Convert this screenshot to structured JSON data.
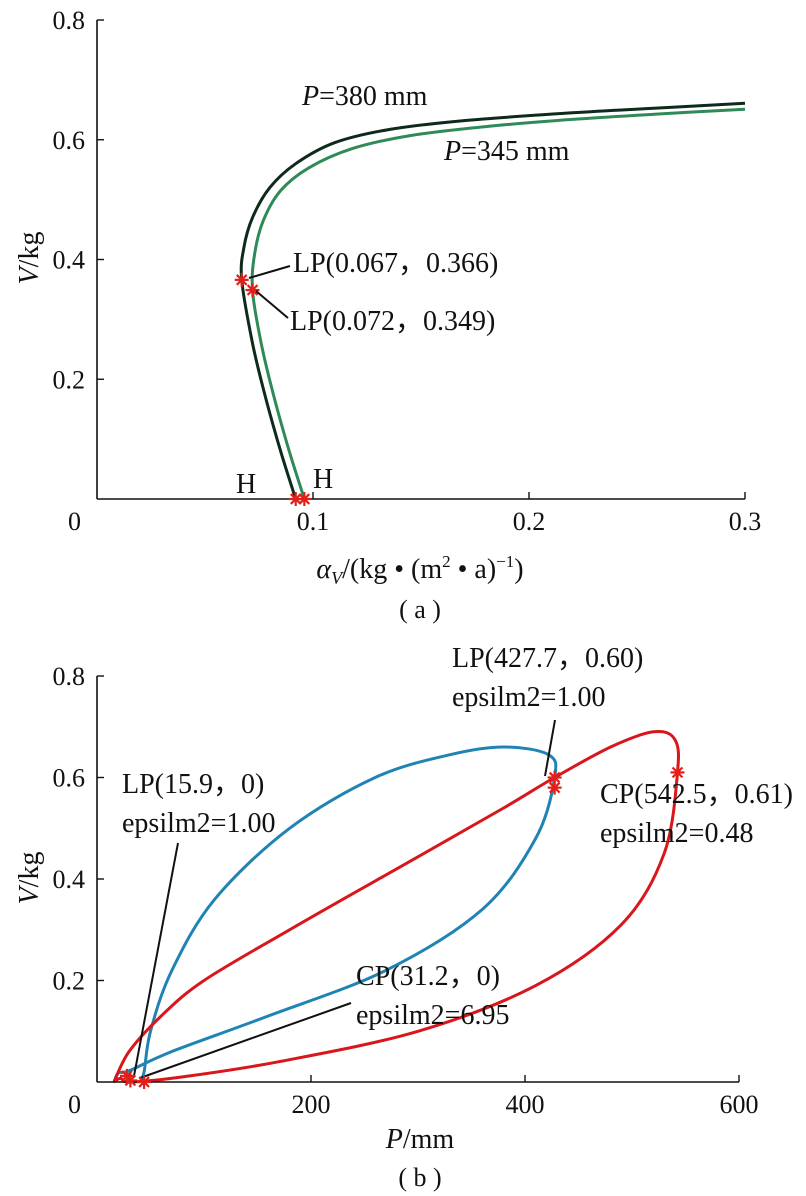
{
  "chart_data": [
    {
      "type": "line",
      "panel_label": "( a )",
      "xlabel": {
        "var": "α",
        "sub": "V",
        "unit": "/(kg • (m",
        "sup2": "2",
        "unit2": " • a)",
        "sup": "−1",
        "close": ")"
      },
      "ylabel": {
        "var": "V",
        "unit": "/kg"
      },
      "origin_label": "0",
      "xlim": [
        0,
        0.3
      ],
      "ylim": [
        0,
        0.8
      ],
      "xticks": [
        0.1,
        0.2,
        0.3
      ],
      "xtick_labels": [
        "0.1",
        "0.2",
        "0.3"
      ],
      "yticks": [
        0.2,
        0.4,
        0.6,
        0.8
      ],
      "ytick_labels": [
        "0.2",
        "0.4",
        "0.6",
        "0.8"
      ],
      "series": [
        {
          "name": "P=380 mm",
          "label_var": "P",
          "label_rest": "=380 mm",
          "color": "#0e2a1a",
          "points": [
            [
              0.092,
              0.0
            ],
            [
              0.085,
              0.08
            ],
            [
              0.078,
              0.17
            ],
            [
              0.072,
              0.26
            ],
            [
              0.067,
              0.366
            ],
            [
              0.068,
              0.42
            ],
            [
              0.072,
              0.47
            ],
            [
              0.08,
              0.52
            ],
            [
              0.092,
              0.56
            ],
            [
              0.11,
              0.595
            ],
            [
              0.135,
              0.617
            ],
            [
              0.17,
              0.632
            ],
            [
              0.22,
              0.645
            ],
            [
              0.26,
              0.653
            ],
            [
              0.3,
              0.661
            ]
          ]
        },
        {
          "name": "P=345 mm",
          "label_var": "P",
          "label_rest": "=345 mm",
          "color": "#2e8b57",
          "points": [
            [
              0.096,
              0.0
            ],
            [
              0.089,
              0.08
            ],
            [
              0.082,
              0.17
            ],
            [
              0.076,
              0.26
            ],
            [
              0.072,
              0.349
            ],
            [
              0.073,
              0.41
            ],
            [
              0.077,
              0.465
            ],
            [
              0.085,
              0.515
            ],
            [
              0.098,
              0.553
            ],
            [
              0.118,
              0.585
            ],
            [
              0.145,
              0.607
            ],
            [
              0.18,
              0.622
            ],
            [
              0.22,
              0.634
            ],
            [
              0.26,
              0.643
            ],
            [
              0.3,
              0.651
            ]
          ]
        }
      ],
      "markers": [
        {
          "x": 0.067,
          "y": 0.366,
          "label": "LP(0.067，0.366)"
        },
        {
          "x": 0.072,
          "y": 0.349,
          "label": "LP(0.072，0.349)"
        },
        {
          "x": 0.092,
          "y": 0.0,
          "label": "H"
        },
        {
          "x": 0.096,
          "y": 0.0,
          "label": "H"
        }
      ],
      "marker_color": "#e0201a"
    },
    {
      "type": "line",
      "panel_label": "( b )",
      "xlabel": {
        "var": "P",
        "unit": "/mm"
      },
      "ylabel": {
        "var": "V",
        "unit": "/kg"
      },
      "origin_label": "0",
      "xlim": [
        0,
        600
      ],
      "ylim": [
        0,
        0.8
      ],
      "xticks": [
        200,
        400,
        600
      ],
      "xtick_labels": [
        "200",
        "400",
        "600"
      ],
      "yticks": [
        0.2,
        0.4,
        0.6,
        0.8
      ],
      "ytick_labels": [
        "0.2",
        "0.4",
        "0.6",
        "0.8"
      ],
      "series": [
        {
          "color": "#1f84b4",
          "points": [
            [
              15.9,
              0.0
            ],
            [
              20,
              0.018
            ],
            [
              30,
              0.022
            ],
            [
              70,
              0.06
            ],
            [
              160,
              0.13
            ],
            [
              270,
              0.22
            ],
            [
              360,
              0.34
            ],
            [
              410,
              0.48
            ],
            [
              427.7,
              0.6
            ],
            [
              422,
              0.645
            ],
            [
              380,
              0.66
            ],
            [
              330,
              0.645
            ],
            [
              260,
              0.6
            ],
            [
              180,
              0.5
            ],
            [
              110,
              0.36
            ],
            [
              70,
              0.22
            ],
            [
              50,
              0.1
            ],
            [
              44,
              0.02
            ],
            [
              40,
              0.0
            ]
          ]
        },
        {
          "color": "#d8161b",
          "points": [
            [
              15.9,
              0.0
            ],
            [
              30,
              0.06
            ],
            [
              60,
              0.13
            ],
            [
              100,
              0.2
            ],
            [
              180,
              0.3
            ],
            [
              280,
              0.42
            ],
            [
              380,
              0.54
            ],
            [
              427.7,
              0.6
            ],
            [
              480,
              0.66
            ],
            [
              520,
              0.69
            ],
            [
              540,
              0.675
            ],
            [
              542.5,
              0.61
            ],
            [
              530,
              0.45
            ],
            [
              490,
              0.31
            ],
            [
              410,
              0.19
            ],
            [
              300,
              0.1
            ],
            [
              170,
              0.04
            ],
            [
              80,
              0.01
            ],
            [
              31.2,
              0.0
            ],
            [
              22,
              0.007
            ],
            [
              15.9,
              0.0
            ]
          ]
        }
      ],
      "markers": [
        {
          "x": 28,
          "y": 0.012,
          "label": "LP(15.9，0)",
          "label2": "epsilm2=1.00"
        },
        {
          "x": 31.2,
          "y": 0.003,
          "label": "CP(31.2，0)",
          "label2": "epsilm2=6.95"
        },
        {
          "x": 44,
          "y": 0.0
        },
        {
          "x": 427.7,
          "y": 0.6,
          "label": "LP(427.7，0.60)",
          "label2": "epsilm2=1.00"
        },
        {
          "x": 427.7,
          "y": 0.58
        },
        {
          "x": 542.5,
          "y": 0.61,
          "label": "CP(542.5，0.61)",
          "label2": "epsilm2=0.48"
        }
      ],
      "marker_color": "#e0201a"
    }
  ]
}
